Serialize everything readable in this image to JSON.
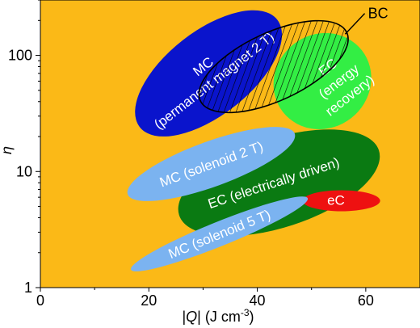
{
  "chart_data": {
    "type": "scatter",
    "background_color": "#FBB917",
    "xlabel_parts": [
      "|",
      "Q",
      "| (J cm",
      "-3",
      ")"
    ],
    "ylabel": "η",
    "xlim": [
      0,
      70
    ],
    "ylim": [
      1,
      300
    ],
    "yscale": "log",
    "xticks": [
      0,
      20,
      40,
      60
    ],
    "xtick_labels": [
      "0",
      "20",
      "40",
      "60"
    ],
    "yticks": [
      1,
      10,
      100
    ],
    "ytick_labels": [
      "1",
      "10",
      "100"
    ],
    "grid": false,
    "regions": [
      {
        "id": "ec-energy-recovery",
        "lines": [
          "EC",
          "(energy",
          "recovery)"
        ],
        "color": "#33EE44",
        "center": [
          52,
          60
        ],
        "label_at": [
          55,
          60
        ],
        "label_angle": -38
      },
      {
        "id": "mc-permanent-magnet",
        "lines": [
          "MC",
          "(permanent magnet 2 T)"
        ],
        "color": "#0A14CC",
        "center": [
          31,
          70
        ],
        "label_at": [
          31,
          70
        ],
        "label_angle": -38
      },
      {
        "id": "ec-electrically-driven",
        "lines": [
          "EC (electrically driven)"
        ],
        "color": "#0A7A12",
        "center": [
          44,
          8
        ],
        "label_at": [
          43,
          8
        ],
        "label_angle": -18
      },
      {
        "id": "ec-elastocaloric",
        "lines": [
          "eC"
        ],
        "color": "#EE1111",
        "center": [
          55.5,
          5.6
        ],
        "label_at": [
          54.5,
          5.7
        ],
        "label_angle": 0
      },
      {
        "id": "mc-solenoid-2t",
        "lines": [
          "MC (solenoid 2 T)"
        ],
        "color": "#7BB3F0",
        "center": [
          31.5,
          11.6
        ],
        "label_at": [
          31.5,
          11.6
        ],
        "label_angle": -20
      },
      {
        "id": "mc-solenoid-5t",
        "lines": [
          "MC (solenoid 5 T)"
        ],
        "color": "#7BB3F0",
        "center": [
          33,
          2.9
        ],
        "label_at": [
          33,
          2.9
        ],
        "label_angle": -22
      },
      {
        "id": "bc-barocaloric",
        "lines": [
          "BC"
        ],
        "color": "hatched",
        "center": [
          43,
          80
        ],
        "label_at": [
          61,
          230
        ],
        "label_angle": 0
      }
    ]
  }
}
